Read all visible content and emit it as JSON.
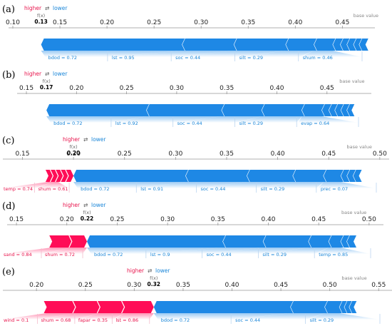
{
  "legend": {
    "higher": "higher",
    "arrow": "⇄",
    "lower": "lower",
    "fx_label": "f(x)",
    "base_label": "base value"
  },
  "colors": {
    "positive": "#ff0d57",
    "negative": "#1e88e5",
    "positive_label": "#e8144c",
    "negative_label": "#1a86d8"
  },
  "chart_data": [
    {
      "type": "force",
      "panel": "(a)",
      "xlim": [
        0.1,
        0.48
      ],
      "ticks": [
        0.1,
        0.15,
        0.2,
        0.25,
        0.3,
        0.35,
        0.4,
        0.45
      ],
      "tick_labels": [
        "0.10",
        "0.15",
        "0.20",
        "0.25",
        "0.30",
        "0.35",
        "0.40",
        "0.45"
      ],
      "fx": 0.13,
      "fx_text": "0.13",
      "base_value": 0.475,
      "positive": [],
      "negative": [
        {
          "label": "bdod = 0.72",
          "to": 0.28
        },
        {
          "label": "lst = 0.95",
          "to": 0.335
        },
        {
          "label": "soc = 0.44",
          "to": 0.39
        },
        {
          "label": "silt = 0.29",
          "to": 0.42
        },
        {
          "label": "shum = 0.46",
          "to": 0.44
        },
        {
          "label": "",
          "to": 0.448
        },
        {
          "label": "",
          "to": 0.455
        },
        {
          "label": "",
          "to": 0.462
        },
        {
          "label": "",
          "to": 0.468
        },
        {
          "label": "",
          "to": 0.475
        }
      ]
    },
    {
      "type": "force",
      "panel": "(b)",
      "xlim": [
        0.145,
        0.49
      ],
      "ticks": [
        0.15,
        0.2,
        0.25,
        0.3,
        0.35,
        0.4,
        0.45
      ],
      "tick_labels": [
        "0.15",
        "0.20",
        "0.25",
        "0.30",
        "0.35",
        "0.40",
        "0.45"
      ],
      "fx": 0.17,
      "fx_text": "0.17",
      "base_value": 0.475,
      "positive": [],
      "negative": [
        {
          "label": "bdod = 0.72",
          "to": 0.27
        },
        {
          "label": "lst = 0.92",
          "to": 0.345
        },
        {
          "label": "soc = 0.44",
          "to": 0.385
        },
        {
          "label": "silt = 0.29",
          "to": 0.425
        },
        {
          "label": "evap = 0.64",
          "to": 0.445
        },
        {
          "label": "",
          "to": 0.452
        },
        {
          "label": "",
          "to": 0.458
        },
        {
          "label": "",
          "to": 0.464
        },
        {
          "label": "",
          "to": 0.47
        },
        {
          "label": "",
          "to": 0.475
        }
      ]
    },
    {
      "type": "force",
      "panel": "(c)",
      "xlim": [
        0.135,
        0.505
      ],
      "ticks": [
        0.15,
        0.2,
        0.25,
        0.3,
        0.35,
        0.4,
        0.45,
        0.5
      ],
      "tick_labels": [
        "0.15",
        "0.20",
        "0.25",
        "0.30",
        "0.35",
        "0.40",
        "0.45",
        "0.50"
      ],
      "fx": 0.2,
      "fx_text": "0.20",
      "base_value": 0.48,
      "positive": [
        {
          "label": "temp = 0.74",
          "from": 0.175
        },
        {
          "label": "shum = 0.61",
          "from": 0.18
        },
        {
          "label": "",
          "from": 0.185
        },
        {
          "label": "",
          "from": 0.19
        },
        {
          "label": "",
          "from": 0.195
        }
      ],
      "negative": [
        {
          "label": "bdod = 0.72",
          "to": 0.31
        },
        {
          "label": "lst = 0.91",
          "to": 0.37
        },
        {
          "label": "soc = 0.44",
          "to": 0.415
        },
        {
          "label": "silt = 0.29",
          "to": 0.445
        },
        {
          "label": "prec = 0.07",
          "to": 0.462
        },
        {
          "label": "",
          "to": 0.468
        },
        {
          "label": "",
          "to": 0.474
        },
        {
          "label": "",
          "to": 0.48
        }
      ]
    },
    {
      "type": "force",
      "panel": "(d)",
      "xlim": [
        0.145,
        0.51
      ],
      "ticks": [
        0.15,
        0.2,
        0.25,
        0.3,
        0.35,
        0.4,
        0.45,
        0.5
      ],
      "tick_labels": [
        "0.15",
        "0.20",
        "0.25",
        "0.30",
        "0.35",
        "0.40",
        "0.45",
        "0.50"
      ],
      "fx": 0.22,
      "fx_text": "0.22",
      "base_value": 0.485,
      "positive": [
        {
          "label": "sand = 0.84",
          "from": 0.185
        },
        {
          "label": "shum = 0.72",
          "from": 0.205
        }
      ],
      "negative": [
        {
          "label": "bdod = 0.72",
          "to": 0.355
        },
        {
          "label": "lst = 0.9",
          "to": 0.395
        },
        {
          "label": "soc = 0.44",
          "to": 0.44
        },
        {
          "label": "silt = 0.29",
          "to": 0.46
        },
        {
          "label": "temp = 0.85",
          "to": 0.472
        },
        {
          "label": "",
          "to": 0.478
        },
        {
          "label": "",
          "to": 0.485
        }
      ]
    },
    {
      "type": "force",
      "panel": "(e)",
      "xlim": [
        0.17,
        0.56
      ],
      "ticks": [
        0.2,
        0.25,
        0.3,
        0.35,
        0.4,
        0.45,
        0.5,
        0.55
      ],
      "tick_labels": [
        "0.20",
        "0.25",
        "0.30",
        "0.35",
        "0.40",
        "0.45",
        "0.50",
        "0.55"
      ],
      "fx": 0.32,
      "fx_text": "0.32",
      "base_value": 0.525,
      "positive": [
        {
          "label": "wind = 0.1",
          "from": 0.21
        },
        {
          "label": "shum = 0.68",
          "from": 0.24
        },
        {
          "label": "fapar = 0.35",
          "from": 0.265
        },
        {
          "label": "lst = 0.86",
          "from": 0.29
        }
      ],
      "negative": [
        {
          "label": "bdod = 0.72",
          "to": 0.46
        },
        {
          "label": "soc = 0.44",
          "to": 0.495
        },
        {
          "label": "silt = 0.29",
          "to": 0.51
        },
        {
          "label": "",
          "to": 0.515
        },
        {
          "label": "",
          "to": 0.52
        },
        {
          "label": "",
          "to": 0.525
        }
      ]
    }
  ]
}
